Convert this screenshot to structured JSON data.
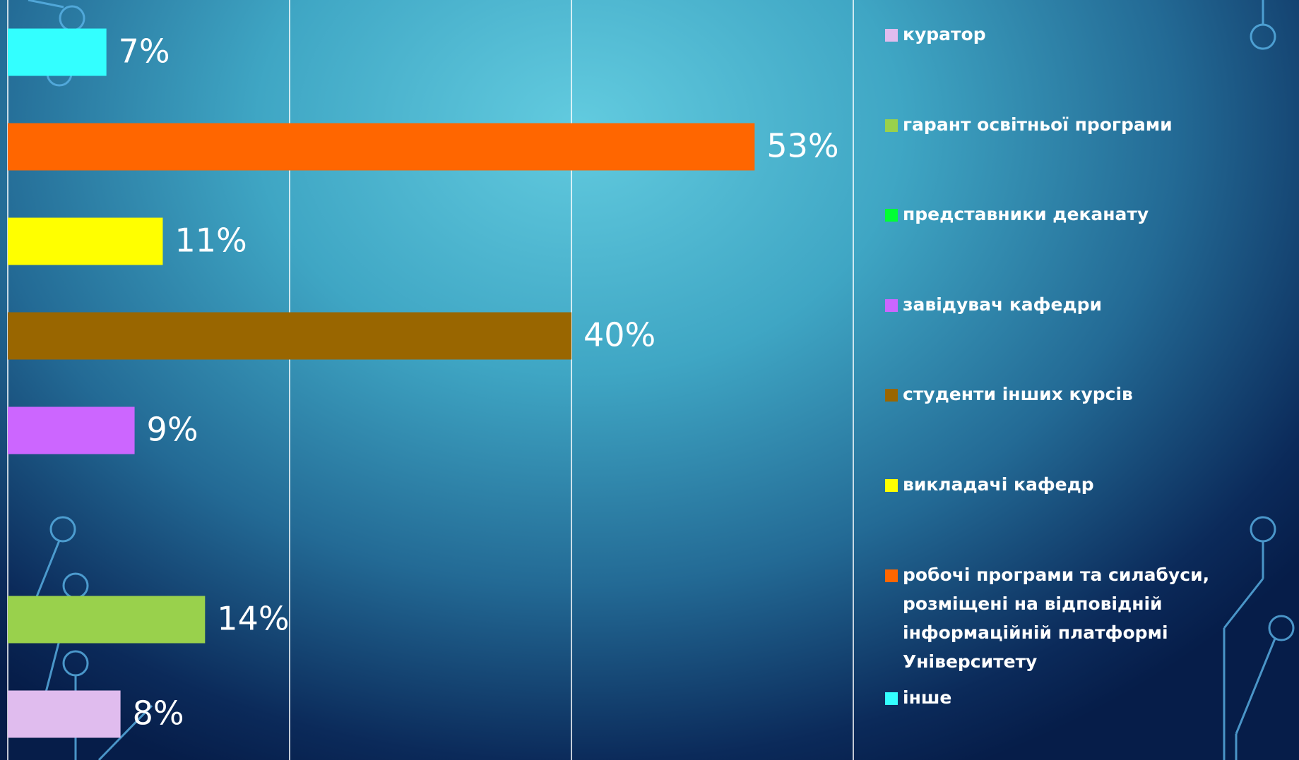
{
  "chart_data": {
    "type": "barh",
    "categories": [
      "куратор",
      "гарант освітньої програми",
      "представники деканату",
      "завідувач кафедри",
      "студенти інших курсів",
      "викладачі кафедр",
      "робочі програми та силабуси, розміщені на відповідній інформаційній платформі Університету",
      "інше"
    ],
    "values": [
      8,
      14,
      null,
      9,
      40,
      11,
      53,
      7
    ],
    "value_labels": [
      "8%",
      "14%",
      null,
      "9%",
      "40%",
      "11%",
      "53%",
      "7%"
    ],
    "colors": [
      "#e0bcee",
      "#99d14c",
      "#00ff33",
      "#cc66ff",
      "#996600",
      "#ffff00",
      "#ff6600",
      "#33ffff"
    ],
    "xlim": [
      0,
      60
    ],
    "xticks": [
      0,
      20,
      40,
      60
    ],
    "grid": true,
    "legend": "right"
  }
}
